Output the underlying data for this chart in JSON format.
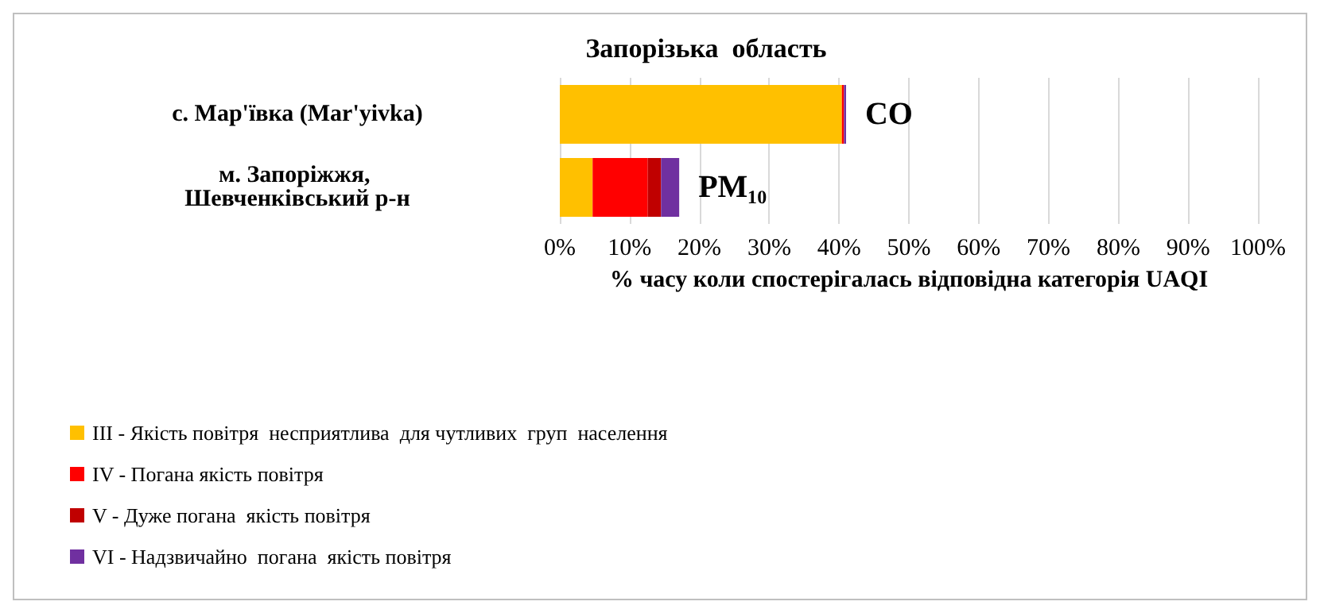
{
  "chart_data": {
    "type": "bar",
    "orientation": "horizontal",
    "stacked": true,
    "title": "Запорізька  область",
    "xlabel": "% часу коли спостерігалась відповідна категорія UAQI",
    "categories": [
      "с. Мар'ївка (Mar'yivka)",
      "м. Запоріжжя, Шевченківський р-н"
    ],
    "series": [
      {
        "name": "III - Якість повітря  несприятлива  для чутливих  груп  населення",
        "color": "#ffc000",
        "values": [
          40.4,
          4.7
        ]
      },
      {
        "name": "IV - Погана якість повітря",
        "color": "#ff0000",
        "values": [
          0.3,
          7.9
        ]
      },
      {
        "name": "V - Дуже погана  якість повітря",
        "color": "#c00000",
        "values": [
          0,
          1.9
        ]
      },
      {
        "name": "VI - Надзвичайно  погана  якість повітря",
        "color": "#7030a0",
        "values": [
          0.3,
          2.6
        ]
      }
    ],
    "xlim": [
      0,
      100
    ],
    "xticks": [
      {
        "value": 0,
        "label": "0%"
      },
      {
        "value": 10,
        "label": "10%"
      },
      {
        "value": 20,
        "label": "20%"
      },
      {
        "value": 30,
        "label": "30%"
      },
      {
        "value": 40,
        "label": "40%"
      },
      {
        "value": 50,
        "label": "50%"
      },
      {
        "value": 60,
        "label": "60%"
      },
      {
        "value": 70,
        "label": "70%"
      },
      {
        "value": 80,
        "label": "80%"
      },
      {
        "value": 90,
        "label": "90%"
      },
      {
        "value": 100,
        "label": "100%"
      }
    ],
    "grid": "x",
    "legend": "bottom left",
    "annotations": [
      "CO",
      "PM₁₀"
    ]
  }
}
